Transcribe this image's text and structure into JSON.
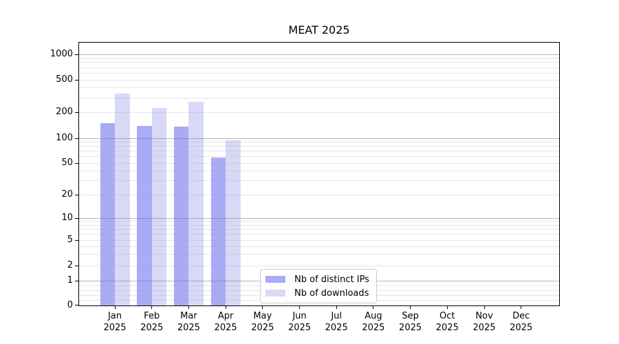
{
  "figure": {
    "title": "MEAT 2025",
    "background": "#ffffff"
  },
  "chart_data": {
    "type": "bar",
    "title": "MEAT 2025",
    "categories": [
      "Jan 2025",
      "Feb 2025",
      "Mar 2025",
      "Apr 2025",
      "May 2025",
      "Jun 2025",
      "Jul 2025",
      "Aug 2025",
      "Sep 2025",
      "Oct 2025",
      "Nov 2025",
      "Dec 2025"
    ],
    "series": [
      {
        "name": "Nb of distinct IPs",
        "color": "#aaaaf7",
        "values": [
          150,
          140,
          137,
          58,
          0,
          0,
          0,
          0,
          0,
          0,
          0,
          0
        ]
      },
      {
        "name": "Nb of downloads",
        "color": "#d9d9f7",
        "values": [
          340,
          225,
          270,
          95,
          0,
          0,
          0,
          0,
          0,
          0,
          0,
          0
        ]
      }
    ],
    "xlabel": "",
    "ylabel": "",
    "yscale": "symlog",
    "ylim": [
      0,
      1400
    ],
    "yticks": [
      0,
      1,
      2,
      5,
      10,
      20,
      50,
      100,
      200,
      500,
      1000
    ],
    "grid": true,
    "legend_position": "inside-lower-center"
  },
  "y_axis": {
    "tick_labels": [
      "0",
      "1",
      "2",
      "5",
      "10",
      "20",
      "50",
      "100",
      "200",
      "500",
      "1000"
    ]
  },
  "x_axis": {
    "ticks": [
      {
        "month": "Jan",
        "year": "2025"
      },
      {
        "month": "Feb",
        "year": "2025"
      },
      {
        "month": "Mar",
        "year": "2025"
      },
      {
        "month": "Apr",
        "year": "2025"
      },
      {
        "month": "May",
        "year": "2025"
      },
      {
        "month": "Jun",
        "year": "2025"
      },
      {
        "month": "Jul",
        "year": "2025"
      },
      {
        "month": "Aug",
        "year": "2025"
      },
      {
        "month": "Sep",
        "year": "2025"
      },
      {
        "month": "Oct",
        "year": "2025"
      },
      {
        "month": "Nov",
        "year": "2025"
      },
      {
        "month": "Dec",
        "year": "2025"
      }
    ]
  },
  "legend": {
    "items": [
      {
        "label": "Nb of distinct IPs",
        "swatch_color": "#aaaaf7"
      },
      {
        "label": "Nb of downloads",
        "swatch_color": "#d9d9f7"
      }
    ]
  },
  "colors": {
    "major_grid": "#787878",
    "minor_grid": "#aaaaaa",
    "axis": "#000000"
  }
}
